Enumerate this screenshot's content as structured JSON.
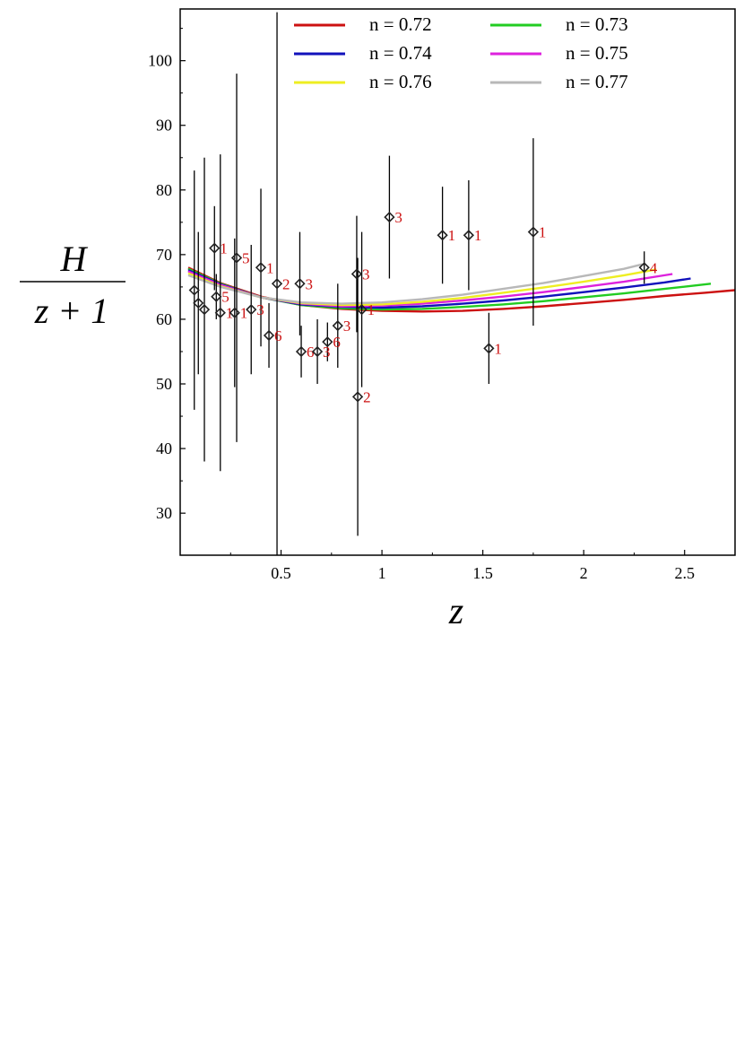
{
  "chart_data": {
    "type": "line",
    "xlabel": "z",
    "ylabel_numerator": "H",
    "ylabel_denominator": "z + 1",
    "xlim": [
      0.0,
      2.75
    ],
    "ylim": [
      23.5,
      108
    ],
    "xticks": [
      0.5,
      1,
      1.5,
      2,
      2.5
    ],
    "xtick_labels": [
      "0.5",
      "1",
      "1.5",
      "2",
      "2.5"
    ],
    "yticks": [
      30,
      40,
      50,
      60,
      70,
      80,
      90,
      100
    ],
    "ytick_labels": [
      "30",
      "40",
      "50",
      "60",
      "70",
      "80",
      "90",
      "100"
    ],
    "grid": false,
    "legend_position": "top",
    "series": [
      {
        "name": "n = 0.72",
        "color": "#cc1111",
        "x_end": 2.75,
        "x": [
          0.04,
          0.2,
          0.4,
          0.6,
          0.8,
          1.0,
          1.2,
          1.4,
          1.6,
          1.8,
          2.0,
          2.2,
          2.4,
          2.6,
          2.75
        ],
        "y": [
          68.0,
          65.6,
          63.5,
          62.2,
          61.6,
          61.3,
          61.2,
          61.3,
          61.6,
          62.0,
          62.5,
          63.0,
          63.6,
          64.1,
          64.5
        ]
      },
      {
        "name": "n = 0.73",
        "color": "#22cc22",
        "x_end": 2.63,
        "x": [
          0.04,
          0.2,
          0.4,
          0.6,
          0.8,
          1.0,
          1.2,
          1.4,
          1.6,
          1.8,
          2.0,
          2.2,
          2.4,
          2.63
        ],
        "y": [
          67.8,
          65.5,
          63.4,
          62.2,
          61.7,
          61.5,
          61.6,
          61.9,
          62.3,
          62.8,
          63.4,
          64.0,
          64.7,
          65.5
        ]
      },
      {
        "name": "n = 0.74",
        "color": "#1111bb",
        "x_end": 2.53,
        "x": [
          0.04,
          0.2,
          0.4,
          0.6,
          0.8,
          1.0,
          1.2,
          1.4,
          1.6,
          1.8,
          2.0,
          2.2,
          2.4,
          2.53
        ],
        "y": [
          67.6,
          65.4,
          63.4,
          62.3,
          61.9,
          61.8,
          62.0,
          62.4,
          62.9,
          63.5,
          64.2,
          64.9,
          65.7,
          66.3
        ]
      },
      {
        "name": "n = 0.75",
        "color": "#dd22dd",
        "x_end": 2.44,
        "x": [
          0.04,
          0.2,
          0.4,
          0.6,
          0.8,
          1.0,
          1.2,
          1.4,
          1.6,
          1.8,
          2.0,
          2.2,
          2.44
        ],
        "y": [
          67.4,
          65.3,
          63.4,
          62.4,
          62.0,
          62.1,
          62.4,
          62.9,
          63.5,
          64.2,
          65.0,
          65.8,
          67.0
        ]
      },
      {
        "name": "n = 0.76",
        "color": "#eeee22",
        "x_end": 2.36,
        "x": [
          0.04,
          0.2,
          0.4,
          0.6,
          0.8,
          1.0,
          1.2,
          1.4,
          1.6,
          1.8,
          2.0,
          2.2,
          2.36
        ],
        "y": [
          67.1,
          65.1,
          63.4,
          62.5,
          62.2,
          62.3,
          62.7,
          63.3,
          64.1,
          64.9,
          65.8,
          66.8,
          67.7
        ]
      },
      {
        "name": "n = 0.77",
        "color": "#b8b8b8",
        "x_end": 2.29,
        "x": [
          0.04,
          0.2,
          0.4,
          0.6,
          0.8,
          1.0,
          1.2,
          1.4,
          1.6,
          1.8,
          2.0,
          2.2,
          2.29
        ],
        "y": [
          66.8,
          65.0,
          63.4,
          62.6,
          62.4,
          62.6,
          63.1,
          63.8,
          64.7,
          65.6,
          66.7,
          67.8,
          68.5
        ]
      }
    ],
    "observations": [
      {
        "z": 0.07,
        "y": 64.5,
        "err": 18.5,
        "label": ""
      },
      {
        "z": 0.09,
        "y": 62.5,
        "err": 11.0,
        "label": ""
      },
      {
        "z": 0.12,
        "y": 61.5,
        "err": 23.5,
        "label": ""
      },
      {
        "z": 0.17,
        "y": 71.0,
        "err": 6.5,
        "label": "1"
      },
      {
        "z": 0.179,
        "y": 63.5,
        "err": 3.5,
        "label": "5"
      },
      {
        "z": 0.199,
        "y": 61.0,
        "err": 24.5,
        "label": "1"
      },
      {
        "z": 0.27,
        "y": 61.0,
        "err": 11.5,
        "label": "1"
      },
      {
        "z": 0.28,
        "y": 69.5,
        "err": 28.5,
        "label": "5"
      },
      {
        "z": 0.352,
        "y": 61.5,
        "err": 10.0,
        "label": "3"
      },
      {
        "z": 0.4,
        "y": 68.0,
        "err": 12.2,
        "label": "1"
      },
      {
        "z": 0.44,
        "y": 57.5,
        "err": 5.0,
        "label": "6"
      },
      {
        "z": 0.48,
        "y": 65.5,
        "err": 42.0,
        "label": "2"
      },
      {
        "z": 0.593,
        "y": 65.5,
        "err": 8.0,
        "label": "3"
      },
      {
        "z": 0.6,
        "y": 55.0,
        "err": 4.0,
        "label": "6"
      },
      {
        "z": 0.68,
        "y": 55.0,
        "err": 5.0,
        "label": "3"
      },
      {
        "z": 0.73,
        "y": 56.5,
        "err": 3.0,
        "label": "6"
      },
      {
        "z": 0.781,
        "y": 59.0,
        "err": 6.5,
        "label": "3"
      },
      {
        "z": 0.875,
        "y": 67.0,
        "err": 9.0,
        "label": "3"
      },
      {
        "z": 0.88,
        "y": 48.0,
        "err": 21.5,
        "label": "2"
      },
      {
        "z": 0.9,
        "y": 61.5,
        "err": 12.0,
        "label": "1"
      },
      {
        "z": 1.037,
        "y": 75.8,
        "err": 9.5,
        "label": "3"
      },
      {
        "z": 1.3,
        "y": 73.0,
        "err": 7.5,
        "label": "1"
      },
      {
        "z": 1.43,
        "y": 73.0,
        "err": 8.5,
        "label": "1"
      },
      {
        "z": 1.53,
        "y": 55.5,
        "err": 5.5,
        "label": "1"
      },
      {
        "z": 1.75,
        "y": 73.5,
        "err": 14.5,
        "label": "1"
      },
      {
        "z": 2.3,
        "y": 68.0,
        "err": 2.5,
        "label": "4"
      }
    ]
  }
}
